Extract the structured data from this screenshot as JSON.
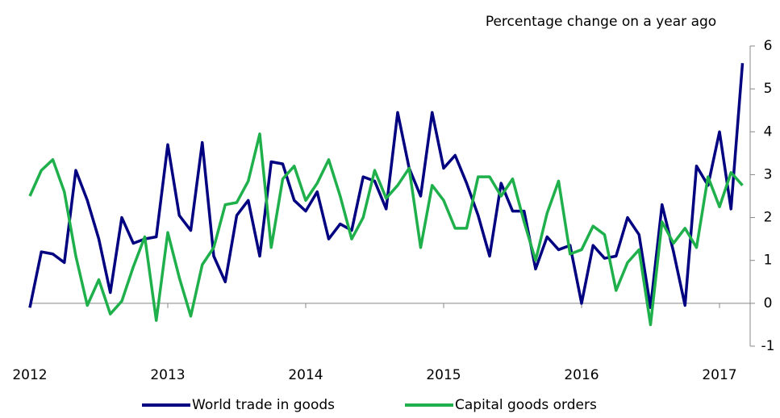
{
  "chart_data": {
    "type": "line",
    "title": "Percentage change on a year ago",
    "categories": [
      "2012",
      null,
      null,
      null,
      null,
      null,
      null,
      null,
      null,
      null,
      null,
      null,
      "2013",
      null,
      null,
      null,
      null,
      null,
      null,
      null,
      null,
      null,
      null,
      null,
      "2014",
      null,
      null,
      null,
      null,
      null,
      null,
      null,
      null,
      null,
      null,
      null,
      "2015",
      null,
      null,
      null,
      null,
      null,
      null,
      null,
      null,
      null,
      null,
      null,
      "2016",
      null,
      null,
      null,
      null,
      null,
      null,
      null,
      null,
      null,
      null,
      null,
      "2017",
      null,
      null
    ],
    "series": [
      {
        "name": "World trade in goods",
        "color": "#000080",
        "values": [
          -0.1,
          1.2,
          1.15,
          0.95,
          3.1,
          2.4,
          1.5,
          0.25,
          2.0,
          1.4,
          1.5,
          1.55,
          3.7,
          2.05,
          1.7,
          3.75,
          1.1,
          0.5,
          2.05,
          2.4,
          1.1,
          3.3,
          3.25,
          2.4,
          2.15,
          2.6,
          1.5,
          1.85,
          1.7,
          2.95,
          2.85,
          2.2,
          4.45,
          3.15,
          2.5,
          4.45,
          3.15,
          3.45,
          2.8,
          2.05,
          1.1,
          2.8,
          2.15,
          2.15,
          0.8,
          1.55,
          1.25,
          1.35,
          0.0,
          1.35,
          1.05,
          1.1,
          2.0,
          1.6,
          -0.1,
          2.3,
          1.2,
          -0.05,
          3.2,
          2.75,
          4.0,
          2.2,
          5.6
        ]
      },
      {
        "name": "Capital goods orders",
        "color": "#1fb04c",
        "values": [
          2.5,
          3.1,
          3.35,
          2.6,
          1.1,
          -0.05,
          0.55,
          -0.25,
          0.05,
          0.85,
          1.55,
          -0.4,
          1.65,
          0.6,
          -0.3,
          0.9,
          1.3,
          2.3,
          2.35,
          2.85,
          3.95,
          1.3,
          2.9,
          3.2,
          2.4,
          2.8,
          3.35,
          2.5,
          1.5,
          2.0,
          3.1,
          2.45,
          2.75,
          3.15,
          1.3,
          2.75,
          2.4,
          1.75,
          1.75,
          2.95,
          2.95,
          2.5,
          2.9,
          1.9,
          1.0,
          2.1,
          2.85,
          1.15,
          1.25,
          1.8,
          1.6,
          0.3,
          0.95,
          1.25,
          -0.5,
          1.9,
          1.4,
          1.75,
          1.3,
          2.95,
          2.25,
          3.05,
          2.75
        ]
      }
    ],
    "ylim": [
      -1,
      6
    ],
    "yticks": [
      -1,
      0,
      1,
      2,
      3,
      4,
      5,
      6
    ]
  }
}
